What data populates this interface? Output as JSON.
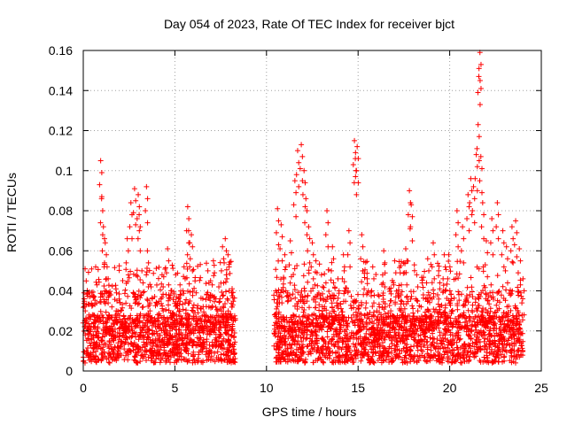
{
  "chart_data": {
    "type": "scatter",
    "title": "Day 054 of 2023, Rate Of TEC Index for receiver bjct",
    "xlabel": "GPS time / hours",
    "ylabel": "ROTI / TECUs",
    "xlim": [
      0,
      25
    ],
    "ylim": [
      0,
      0.16
    ],
    "xticks": [
      0,
      5,
      10,
      15,
      20,
      25
    ],
    "xtick_labels": [
      "0",
      "5",
      "10",
      "15",
      "20",
      "25"
    ],
    "yticks": [
      0,
      0.02,
      0.04,
      0.06,
      0.08,
      0.1,
      0.12,
      0.14,
      0.16
    ],
    "ytick_labels": [
      "0",
      "0.02",
      "0.04",
      "0.06",
      "0.08",
      "0.1",
      "0.12",
      "0.14",
      "0.16"
    ],
    "grid": true,
    "marker": "+",
    "color": "#ff0000",
    "data_gap": [
      8.3,
      10.4
    ],
    "series": [
      {
        "name": "ROTI",
        "x": [
          0.05,
          0.1,
          0.2,
          0.35,
          0.5,
          0.7,
          0.95,
          1.0,
          1.1,
          1.2,
          1.3,
          1.5,
          1.8,
          2.1,
          2.4,
          2.6,
          2.8,
          3.0,
          3.05,
          3.2,
          3.45,
          3.5,
          3.7,
          4.0,
          4.3,
          4.6,
          4.9,
          5.2,
          5.5,
          5.7,
          5.75,
          5.9,
          6.1,
          6.4,
          6.8,
          7.1,
          7.4,
          7.6,
          7.75,
          7.9,
          8.1,
          8.2,
          10.5,
          10.6,
          10.8,
          11.0,
          11.3,
          11.55,
          11.7,
          11.9,
          12.05,
          12.15,
          12.3,
          12.5,
          12.7,
          13.0,
          13.3,
          13.6,
          13.9,
          14.2,
          14.5,
          14.8,
          14.85,
          14.95,
          15.2,
          15.5,
          15.8,
          16.1,
          16.4,
          16.7,
          17.0,
          17.3,
          17.6,
          17.8,
          17.9,
          18.2,
          18.5,
          18.8,
          19.1,
          19.4,
          19.7,
          19.95,
          20.1,
          20.4,
          20.7,
          21.0,
          21.15,
          21.3,
          21.45,
          21.55,
          21.6,
          21.65,
          21.7,
          21.8,
          22.0,
          22.3,
          22.6,
          22.9,
          23.1,
          23.4,
          23.6,
          23.8,
          24.0
        ],
        "y": [
          0.036,
          0.051,
          0.022,
          0.014,
          0.028,
          0.018,
          0.105,
          0.086,
          0.072,
          0.064,
          0.052,
          0.038,
          0.03,
          0.024,
          0.066,
          0.084,
          0.091,
          0.088,
          0.078,
          0.05,
          0.092,
          0.06,
          0.042,
          0.034,
          0.048,
          0.061,
          0.029,
          0.036,
          0.052,
          0.082,
          0.07,
          0.068,
          0.045,
          0.031,
          0.05,
          0.055,
          0.042,
          0.062,
          0.066,
          0.058,
          0.039,
          0.025,
          0.04,
          0.081,
          0.073,
          0.058,
          0.065,
          0.095,
          0.11,
          0.113,
          0.1,
          0.086,
          0.072,
          0.064,
          0.055,
          0.048,
          0.08,
          0.062,
          0.046,
          0.058,
          0.07,
          0.115,
          0.106,
          0.112,
          0.068,
          0.046,
          0.052,
          0.038,
          0.06,
          0.041,
          0.055,
          0.049,
          0.061,
          0.09,
          0.083,
          0.048,
          0.044,
          0.056,
          0.064,
          0.05,
          0.058,
          0.058,
          0.036,
          0.08,
          0.072,
          0.088,
          0.096,
          0.092,
          0.108,
          0.123,
          0.151,
          0.159,
          0.107,
          0.084,
          0.065,
          0.076,
          0.084,
          0.07,
          0.062,
          0.072,
          0.075,
          0.061,
          0.046
        ]
      }
    ]
  }
}
